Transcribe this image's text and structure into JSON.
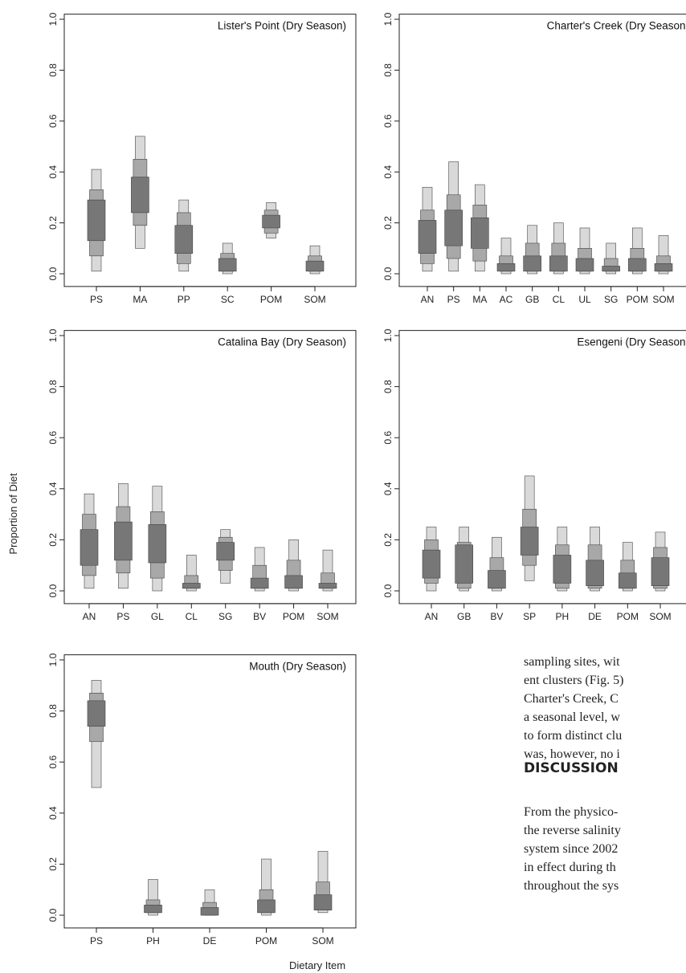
{
  "figure": {
    "ylabel": "Proportion of Diet",
    "xlabel": "Dietary Item"
  },
  "chart_data": [
    {
      "type": "box",
      "title": "Lister's Point (Dry Season)",
      "ylim": [
        0,
        1
      ],
      "yticks": [
        "0.0",
        "0.2",
        "0.4",
        "0.6",
        "0.8",
        "1.0"
      ],
      "categories": [
        "PS",
        "MA",
        "PP",
        "SC",
        "POM",
        "SOM"
      ],
      "credible_intervals": [
        {
          "q95": [
            0.01,
            0.41
          ],
          "q75": [
            0.07,
            0.33
          ],
          "q50": [
            0.13,
            0.29
          ]
        },
        {
          "q95": [
            0.1,
            0.54
          ],
          "q75": [
            0.19,
            0.45
          ],
          "q50": [
            0.24,
            0.38
          ]
        },
        {
          "q95": [
            0.01,
            0.29
          ],
          "q75": [
            0.04,
            0.24
          ],
          "q50": [
            0.08,
            0.19
          ]
        },
        {
          "q95": [
            0.0,
            0.12
          ],
          "q75": [
            0.01,
            0.08
          ],
          "q50": [
            0.01,
            0.06
          ]
        },
        {
          "q95": [
            0.14,
            0.28
          ],
          "q75": [
            0.16,
            0.25
          ],
          "q50": [
            0.18,
            0.23
          ]
        },
        {
          "q95": [
            0.0,
            0.11
          ],
          "q75": [
            0.01,
            0.07
          ],
          "q50": [
            0.01,
            0.05
          ]
        }
      ]
    },
    {
      "type": "box",
      "title": "Charter's Creek (Dry Season)",
      "ylim": [
        0,
        1
      ],
      "yticks": [
        "0.0",
        "0.2",
        "0.4",
        "0.6",
        "0.8",
        "1.0"
      ],
      "categories": [
        "AN",
        "PS",
        "MA",
        "AC",
        "GB",
        "CL",
        "UL",
        "SG",
        "POM",
        "SOM"
      ],
      "credible_intervals": [
        {
          "q95": [
            0.01,
            0.34
          ],
          "q75": [
            0.04,
            0.25
          ],
          "q50": [
            0.08,
            0.21
          ]
        },
        {
          "q95": [
            0.01,
            0.44
          ],
          "q75": [
            0.06,
            0.31
          ],
          "q50": [
            0.11,
            0.25
          ]
        },
        {
          "q95": [
            0.01,
            0.35
          ],
          "q75": [
            0.05,
            0.27
          ],
          "q50": [
            0.1,
            0.22
          ]
        },
        {
          "q95": [
            0.0,
            0.14
          ],
          "q75": [
            0.01,
            0.07
          ],
          "q50": [
            0.01,
            0.04
          ]
        },
        {
          "q95": [
            0.0,
            0.19
          ],
          "q75": [
            0.01,
            0.12
          ],
          "q50": [
            0.01,
            0.07
          ]
        },
        {
          "q95": [
            0.0,
            0.2
          ],
          "q75": [
            0.01,
            0.12
          ],
          "q50": [
            0.01,
            0.07
          ]
        },
        {
          "q95": [
            0.0,
            0.18
          ],
          "q75": [
            0.01,
            0.1
          ],
          "q50": [
            0.01,
            0.06
          ]
        },
        {
          "q95": [
            0.0,
            0.12
          ],
          "q75": [
            0.01,
            0.06
          ],
          "q50": [
            0.01,
            0.03
          ]
        },
        {
          "q95": [
            0.0,
            0.18
          ],
          "q75": [
            0.01,
            0.1
          ],
          "q50": [
            0.01,
            0.06
          ]
        },
        {
          "q95": [
            0.0,
            0.15
          ],
          "q75": [
            0.01,
            0.07
          ],
          "q50": [
            0.01,
            0.04
          ]
        }
      ]
    },
    {
      "type": "box",
      "title": "Catalina Bay (Dry Season)",
      "ylim": [
        0,
        1
      ],
      "yticks": [
        "0.0",
        "0.2",
        "0.4",
        "0.6",
        "0.8",
        "1.0"
      ],
      "categories": [
        "AN",
        "PS",
        "GL",
        "CL",
        "SG",
        "BV",
        "POM",
        "SOM"
      ],
      "credible_intervals": [
        {
          "q95": [
            0.01,
            0.38
          ],
          "q75": [
            0.06,
            0.3
          ],
          "q50": [
            0.1,
            0.24
          ]
        },
        {
          "q95": [
            0.01,
            0.42
          ],
          "q75": [
            0.07,
            0.33
          ],
          "q50": [
            0.12,
            0.27
          ]
        },
        {
          "q95": [
            0.0,
            0.41
          ],
          "q75": [
            0.05,
            0.31
          ],
          "q50": [
            0.11,
            0.26
          ]
        },
        {
          "q95": [
            0.0,
            0.14
          ],
          "q75": [
            0.01,
            0.06
          ],
          "q50": [
            0.01,
            0.03
          ]
        },
        {
          "q95": [
            0.03,
            0.24
          ],
          "q75": [
            0.08,
            0.21
          ],
          "q50": [
            0.12,
            0.19
          ]
        },
        {
          "q95": [
            0.0,
            0.17
          ],
          "q75": [
            0.01,
            0.1
          ],
          "q50": [
            0.01,
            0.05
          ]
        },
        {
          "q95": [
            0.0,
            0.2
          ],
          "q75": [
            0.01,
            0.12
          ],
          "q50": [
            0.01,
            0.06
          ]
        },
        {
          "q95": [
            0.0,
            0.16
          ],
          "q75": [
            0.01,
            0.07
          ],
          "q50": [
            0.01,
            0.03
          ]
        }
      ]
    },
    {
      "type": "box",
      "title": "Esengeni (Dry Season)",
      "ylim": [
        0,
        1
      ],
      "yticks": [
        "0.0",
        "0.2",
        "0.4",
        "0.6",
        "0.8",
        "1.0"
      ],
      "categories": [
        "AN",
        "GB",
        "BV",
        "SP",
        "PH",
        "DE",
        "POM",
        "SOM"
      ],
      "credible_intervals": [
        {
          "q95": [
            0.0,
            0.25
          ],
          "q75": [
            0.03,
            0.2
          ],
          "q50": [
            0.05,
            0.16
          ]
        },
        {
          "q95": [
            0.0,
            0.25
          ],
          "q75": [
            0.01,
            0.19
          ],
          "q50": [
            0.03,
            0.18
          ]
        },
        {
          "q95": [
            0.0,
            0.21
          ],
          "q75": [
            0.01,
            0.13
          ],
          "q50": [
            0.01,
            0.08
          ]
        },
        {
          "q95": [
            0.04,
            0.45
          ],
          "q75": [
            0.1,
            0.32
          ],
          "q50": [
            0.14,
            0.25
          ]
        },
        {
          "q95": [
            0.0,
            0.25
          ],
          "q75": [
            0.01,
            0.18
          ],
          "q50": [
            0.03,
            0.14
          ]
        },
        {
          "q95": [
            0.0,
            0.25
          ],
          "q75": [
            0.01,
            0.18
          ],
          "q50": [
            0.02,
            0.12
          ]
        },
        {
          "q95": [
            0.0,
            0.19
          ],
          "q75": [
            0.01,
            0.12
          ],
          "q50": [
            0.01,
            0.07
          ]
        },
        {
          "q95": [
            0.0,
            0.23
          ],
          "q75": [
            0.01,
            0.17
          ],
          "q50": [
            0.02,
            0.13
          ]
        }
      ]
    },
    {
      "type": "box",
      "title": "Mouth (Dry Season)",
      "ylim": [
        0,
        1
      ],
      "yticks": [
        "0.0",
        "0.2",
        "0.4",
        "0.6",
        "0.8",
        "1.0"
      ],
      "categories": [
        "PS",
        "PH",
        "DE",
        "POM",
        "SOM"
      ],
      "credible_intervals": [
        {
          "q95": [
            0.5,
            0.92
          ],
          "q75": [
            0.68,
            0.87
          ],
          "q50": [
            0.74,
            0.84
          ]
        },
        {
          "q95": [
            0.0,
            0.14
          ],
          "q75": [
            0.01,
            0.06
          ],
          "q50": [
            0.01,
            0.04
          ]
        },
        {
          "q95": [
            0.0,
            0.1
          ],
          "q75": [
            0.0,
            0.05
          ],
          "q50": [
            0.0,
            0.03
          ]
        },
        {
          "q95": [
            0.0,
            0.22
          ],
          "q75": [
            0.01,
            0.1
          ],
          "q50": [
            0.01,
            0.06
          ]
        },
        {
          "q95": [
            0.01,
            0.25
          ],
          "q75": [
            0.02,
            0.13
          ],
          "q50": [
            0.02,
            0.08
          ]
        }
      ]
    }
  ],
  "text": {
    "line1": "sampling sites, wit",
    "line2": "ent clusters (Fig. 5)",
    "line3": "Charter's Creek, C",
    "line4": "a seasonal level, w",
    "line5": "to form distinct clu",
    "line6": "was, however, no i",
    "heading": "DISCUSSION",
    "line7": "From the physico-",
    "line8": "the reverse salinity",
    "line9": "system since 2002",
    "line10": "in effect during th",
    "line11": "throughout the sys"
  },
  "colors": {
    "q95": "#d9d9d9",
    "q75": "#a8a8a8",
    "q50": "#777777",
    "stroke": "#444444"
  }
}
